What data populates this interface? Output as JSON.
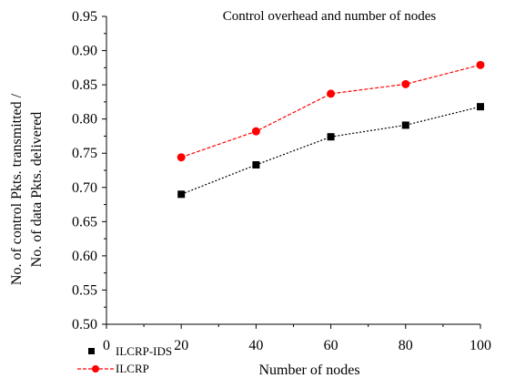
{
  "chart_data": {
    "type": "line",
    "title": "Control overhead and number of nodes",
    "xlabel": "Number of nodes",
    "ylabel": [
      "No. of control Pkts. transmitted /",
      "No. of data Pkts. delivered"
    ],
    "xlim": [
      0,
      100
    ],
    "ylim": [
      0.5,
      0.95
    ],
    "x_ticks": [
      "0",
      "20",
      "40",
      "60",
      "80",
      "100"
    ],
    "y_ticks": [
      "0.50",
      "0.55",
      "0.60",
      "0.65",
      "0.70",
      "0.75",
      "0.80",
      "0.85",
      "0.90",
      "0.95"
    ],
    "grid": false,
    "legend_position": "bottom-left",
    "x": [
      20,
      40,
      60,
      80,
      100
    ],
    "series": [
      {
        "name": "ILCRP-IDS",
        "values": [
          0.69,
          0.733,
          0.774,
          0.791,
          0.818
        ],
        "color": "#000000",
        "marker": "square",
        "line_style": "dotted"
      },
      {
        "name": "ILCRP",
        "values": [
          0.744,
          0.782,
          0.837,
          0.851,
          0.879
        ],
        "color": "#ff0000",
        "marker": "circle",
        "line_style": "dashed"
      }
    ]
  }
}
